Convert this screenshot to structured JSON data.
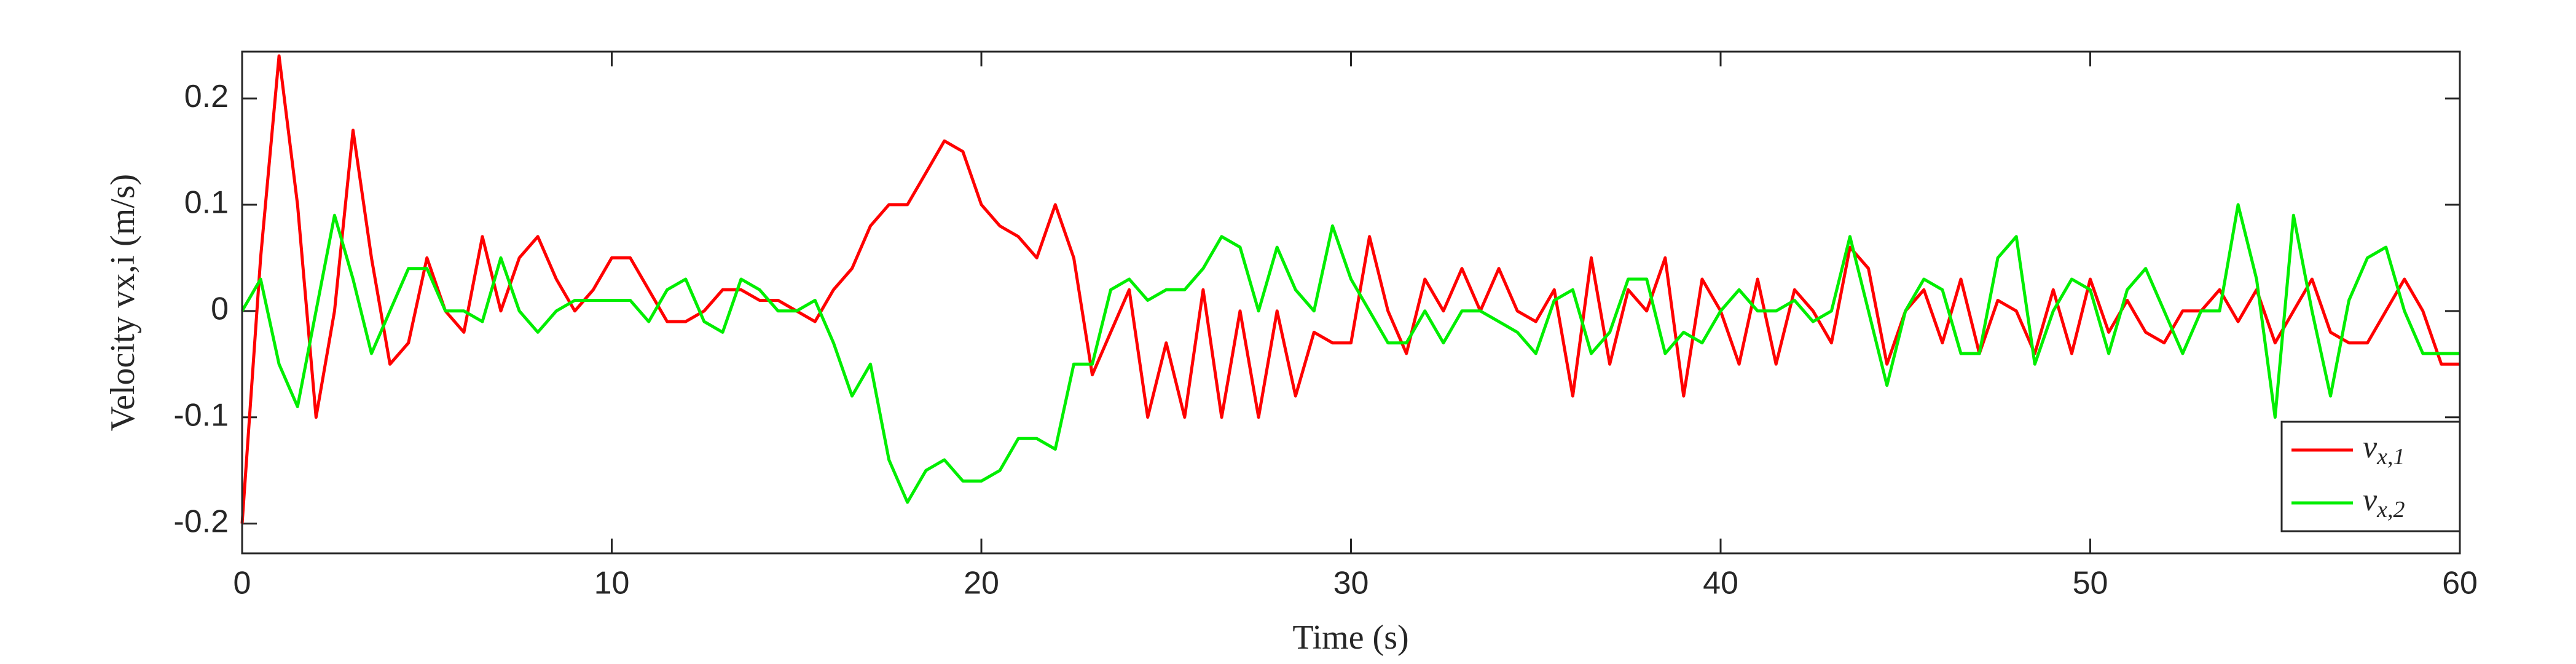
{
  "chart_data": {
    "type": "line",
    "xlabel": "Time (s)",
    "ylabel": "Velocity vx,i (m/s)",
    "x": [
      0,
      0.5,
      1,
      1.5,
      2,
      2.5,
      3,
      3.5,
      4,
      4.5,
      5,
      5.5,
      6,
      6.5,
      7,
      7.5,
      8,
      8.5,
      9,
      9.5,
      10,
      10.5,
      11,
      11.5,
      12,
      12.5,
      13,
      13.5,
      14,
      14.5,
      15,
      15.5,
      16,
      16.5,
      17,
      17.5,
      18,
      18.5,
      19,
      19.5,
      20,
      20.5,
      21,
      21.5,
      22,
      22.5,
      23,
      23.5,
      24,
      24.5,
      25,
      25.5,
      26,
      26.5,
      27,
      27.5,
      28,
      28.5,
      29,
      29.5,
      30,
      30.5,
      31,
      31.5,
      32,
      32.5,
      33,
      33.5,
      34,
      34.5,
      35,
      35.5,
      36,
      36.5,
      37,
      37.5,
      38,
      38.5,
      39,
      39.5,
      40,
      40.5,
      41,
      41.5,
      42,
      42.5,
      43,
      43.5,
      44,
      44.5,
      45,
      45.5,
      46,
      46.5,
      47,
      47.5,
      48,
      48.5,
      49,
      49.5,
      50,
      50.5,
      51,
      51.5,
      52,
      52.5,
      53,
      53.5,
      54,
      54.5,
      55,
      55.5,
      56,
      56.5,
      57,
      57.5,
      58,
      58.5,
      59,
      59.5,
      60
    ],
    "series": [
      {
        "name": "vx,1",
        "color": "#ff0000",
        "values": [
          -0.2,
          0.05,
          0.24,
          0.1,
          -0.1,
          0,
          0.17,
          0.05,
          -0.05,
          -0.03,
          0.05,
          0,
          -0.02,
          0.07,
          0,
          0.05,
          0.07,
          0.03,
          0,
          0.02,
          0.05,
          0.05,
          0.02,
          -0.01,
          -0.01,
          0,
          0.02,
          0.02,
          0.01,
          0.01,
          0,
          -0.01,
          0.02,
          0.04,
          0.08,
          0.1,
          0.1,
          0.13,
          0.16,
          0.15,
          0.1,
          0.08,
          0.07,
          0.05,
          0.1,
          0.05,
          -0.06,
          -0.02,
          0.02,
          -0.1,
          -0.03,
          -0.1,
          0.02,
          -0.1,
          0,
          -0.1,
          0,
          -0.08,
          -0.02,
          -0.03,
          -0.03,
          0.07,
          0,
          -0.04,
          0.03,
          0,
          0.04,
          0,
          0.04,
          0,
          -0.01,
          0.02,
          -0.08,
          0.05,
          -0.05,
          0.02,
          0,
          0.05,
          -0.08,
          0.03,
          0,
          -0.05,
          0.03,
          -0.05,
          0.02,
          0,
          -0.03,
          0.06,
          0.04,
          -0.05,
          0,
          0.02,
          -0.03,
          0.03,
          -0.04,
          0.01,
          0,
          -0.04,
          0.02,
          -0.04,
          0.03,
          -0.02,
          0.01,
          -0.02,
          -0.03,
          0,
          0,
          0.02,
          -0.01,
          0.02,
          -0.03,
          0,
          0.03,
          -0.02,
          -0.03,
          -0.03,
          0,
          0.03,
          0,
          -0.05,
          -0.05
        ]
      },
      {
        "name": "vx,2",
        "color": "#00ee00",
        "values": [
          0,
          0.03,
          -0.05,
          -0.09,
          0,
          0.09,
          0.03,
          -0.04,
          0,
          0.04,
          0.04,
          0,
          0,
          -0.01,
          0.05,
          0,
          -0.02,
          0,
          0.01,
          0.01,
          0.01,
          0.01,
          -0.01,
          0.02,
          0.03,
          -0.01,
          -0.02,
          0.03,
          0.02,
          0,
          0,
          0.01,
          -0.03,
          -0.08,
          -0.05,
          -0.14,
          -0.18,
          -0.15,
          -0.14,
          -0.16,
          -0.16,
          -0.15,
          -0.12,
          -0.12,
          -0.13,
          -0.05,
          -0.05,
          0.02,
          0.03,
          0.01,
          0.02,
          0.02,
          0.04,
          0.07,
          0.06,
          0,
          0.06,
          0.02,
          0,
          0.08,
          0.03,
          0,
          -0.03,
          -0.03,
          0,
          -0.03,
          0,
          0,
          -0.01,
          -0.02,
          -0.04,
          0.01,
          0.02,
          -0.04,
          -0.02,
          0.03,
          0.03,
          -0.04,
          -0.02,
          -0.03,
          0,
          0.02,
          0,
          0,
          0.01,
          -0.01,
          0,
          0.07,
          0,
          -0.07,
          0,
          0.03,
          0.02,
          -0.04,
          -0.04,
          0.05,
          0.07,
          -0.05,
          0,
          0.03,
          0.02,
          -0.04,
          0.02,
          0.04,
          0,
          -0.04,
          0,
          0,
          0.1,
          0.03,
          -0.1,
          0.09,
          0,
          -0.08,
          0.01,
          0.05,
          0.06,
          0,
          -0.04,
          -0.04,
          -0.04
        ]
      }
    ],
    "xlim": [
      0,
      60
    ],
    "xticks": [
      0,
      10,
      20,
      30,
      40,
      50,
      60
    ],
    "ylim": [
      -0.228,
      0.244
    ],
    "yticks": [
      -0.2,
      -0.1,
      0,
      0.1,
      0.2
    ],
    "legend": "lower right"
  }
}
